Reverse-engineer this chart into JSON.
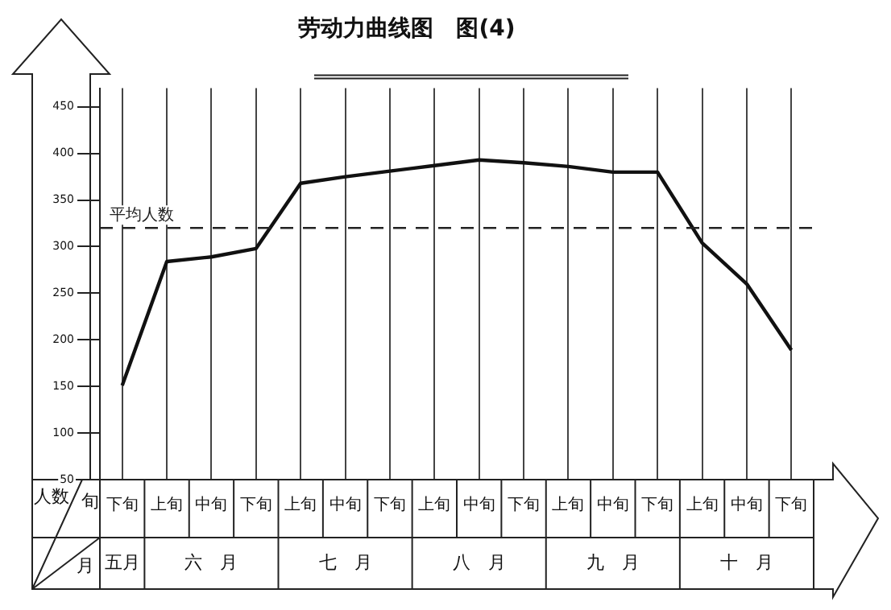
{
  "chart_data": {
    "type": "line",
    "title": "劳动力曲线图　图(4)",
    "categories": [
      "下旬",
      "上旬",
      "中旬",
      "下旬",
      "上旬",
      "中旬",
      "下旬",
      "上旬",
      "中旬",
      "下旬",
      "上旬",
      "中旬",
      "下旬",
      "上旬",
      "中旬",
      "下旬"
    ],
    "series": [
      {
        "color": "#111111",
        "values": [
          151,
          284,
          289,
          298,
          368,
          375,
          381,
          387,
          393,
          390,
          386,
          380,
          380,
          304,
          260,
          189
        ]
      }
    ],
    "ylim": [
      50,
      470
    ],
    "yticks": [
      50,
      100,
      150,
      200,
      250,
      300,
      350,
      400,
      450
    ],
    "ref_lines": [
      {
        "axis": "y",
        "value": 320,
        "label": "平均人数",
        "line_style": "dashed",
        "color": "#222222"
      }
    ],
    "annotations": [
      "人数",
      "旬",
      "月",
      "五月",
      "六　月",
      "七　月",
      "八　月",
      "九　月",
      "十　月"
    ],
    "grid": "x",
    "marker": "none",
    "line_style": "solid",
    "legend": false
  }
}
